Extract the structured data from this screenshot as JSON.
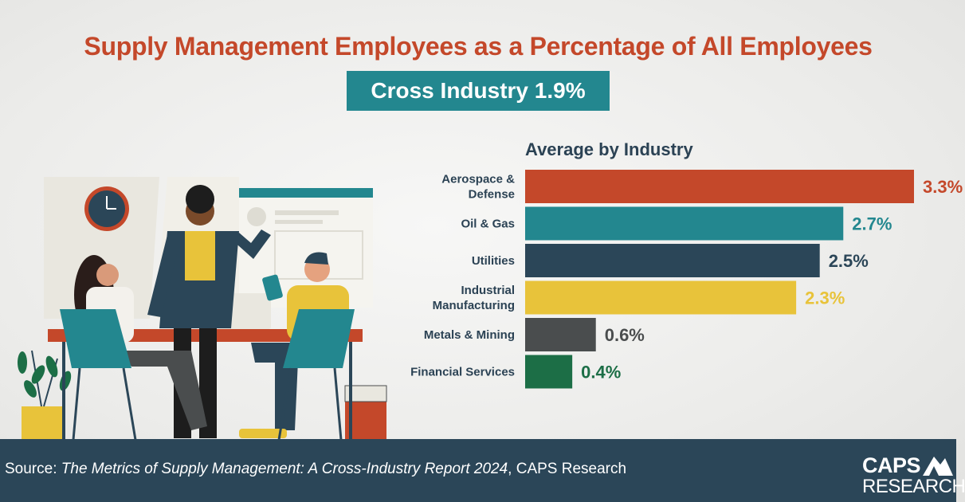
{
  "header": {
    "title": "Supply Management Employees as a Percentage of All Employees",
    "subtitle": "Cross Industry 1.9%"
  },
  "chart_data": {
    "type": "bar",
    "orientation": "horizontal",
    "title": "Average by Industry",
    "xlim": [
      0,
      3.3
    ],
    "grid": false,
    "categories": [
      [
        "Aerospace &",
        "Defense"
      ],
      [
        "Oil & Gas"
      ],
      [
        "Utilities"
      ],
      [
        "Industrial",
        "Manufacturing"
      ],
      [
        "Metals & Mining"
      ],
      [
        "Financial Services"
      ]
    ],
    "values": [
      3.3,
      2.7,
      2.5,
      2.3,
      0.6,
      0.4
    ],
    "data_labels": [
      "3.3%",
      "2.7%",
      "2.5%",
      "2.3%",
      "0.6%",
      "0.4%"
    ],
    "colors": [
      "#c4482a",
      "#23878f",
      "#2b4658",
      "#e8c33a",
      "#4a4d4e",
      "#1c6e46"
    ]
  },
  "footer": {
    "source_label": "Source: ",
    "source_title": "The Metrics of Supply Management: A Cross-Industry Report 2024",
    "source_org": ", CAPS Research"
  },
  "logo": {
    "line1": "CAPS",
    "line2": "RESEARCH"
  }
}
